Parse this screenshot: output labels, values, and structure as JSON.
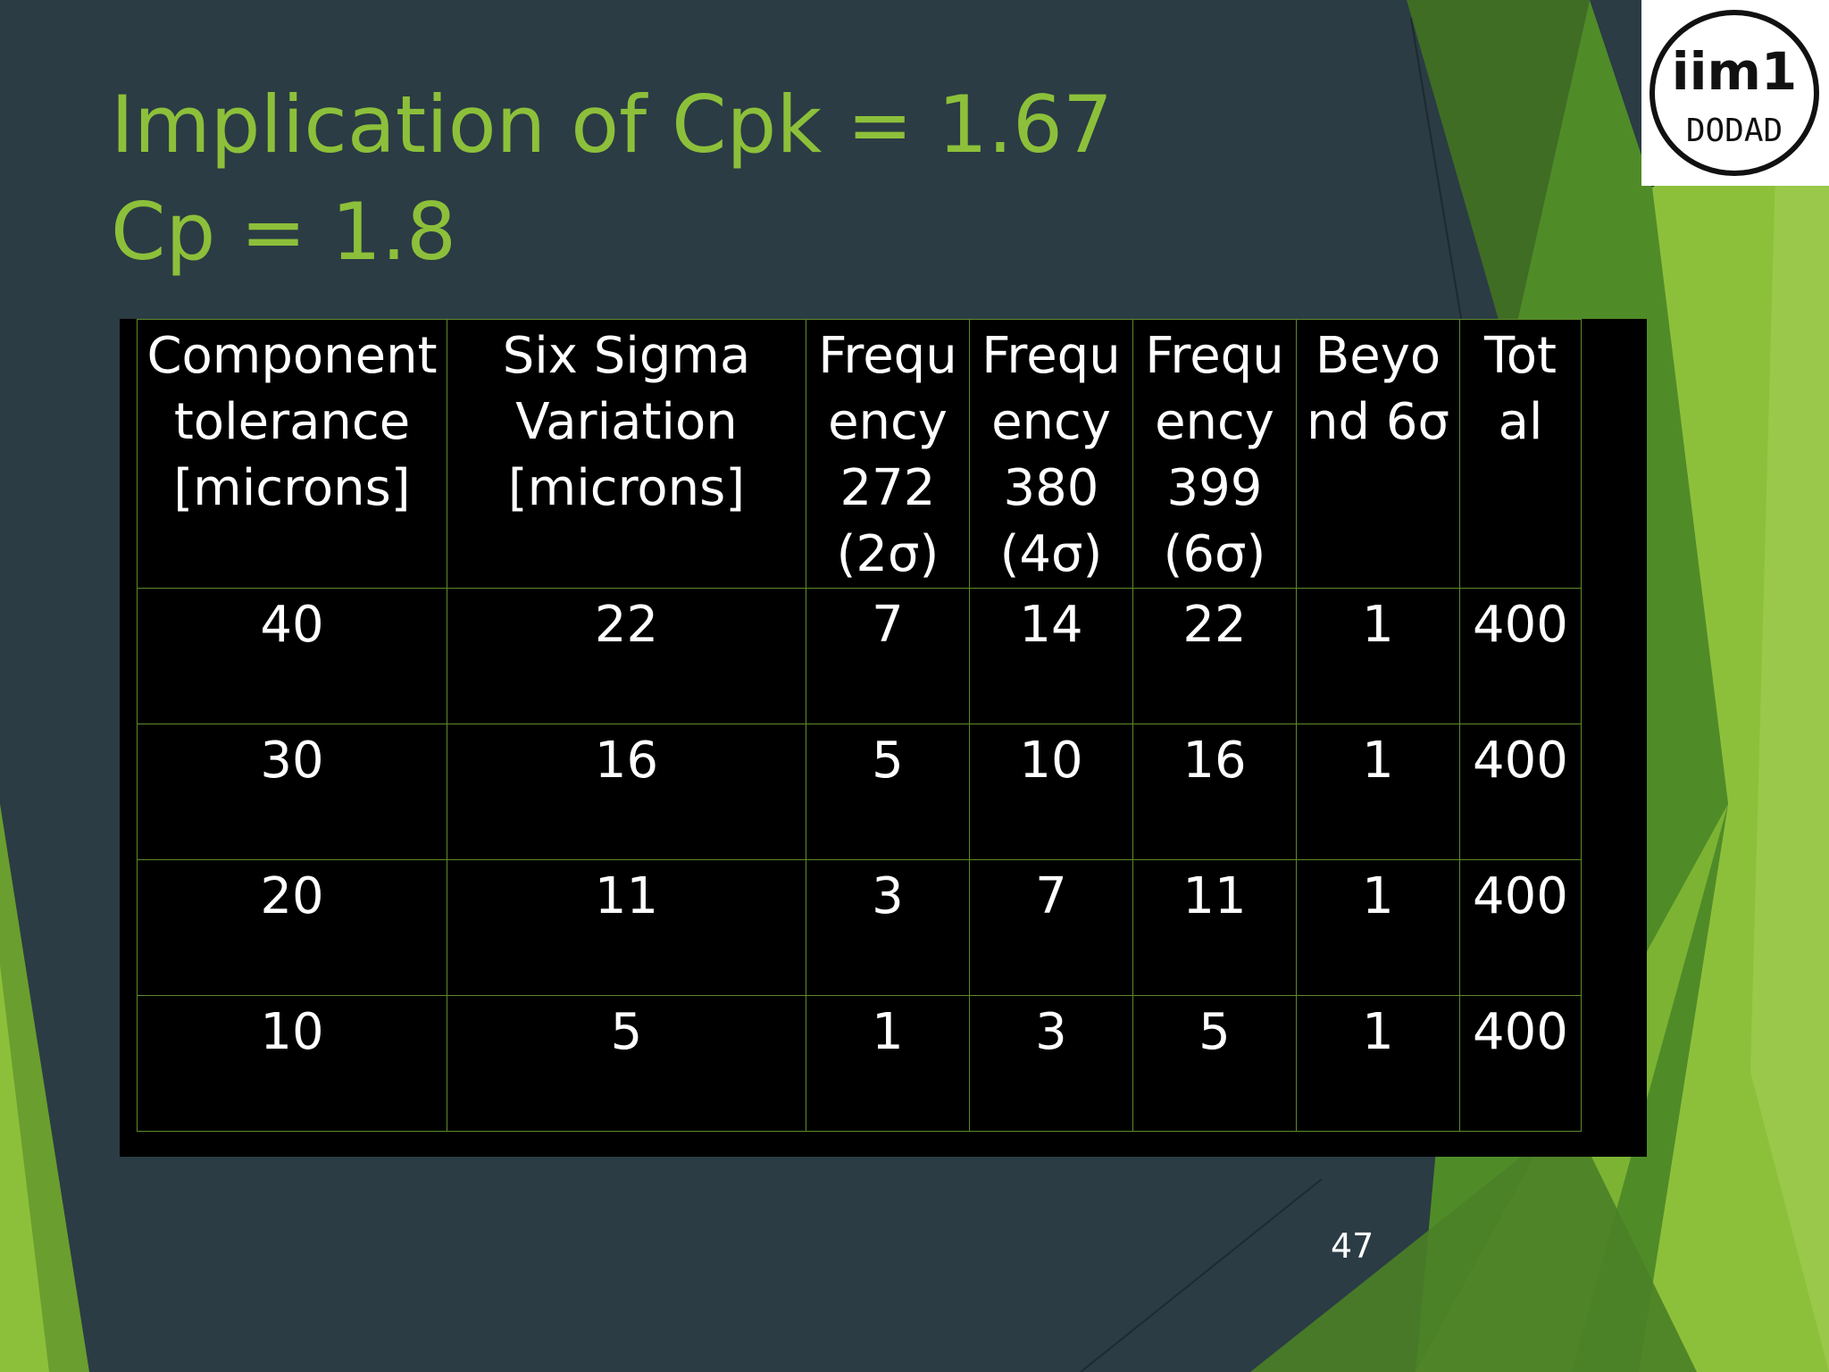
{
  "slide": {
    "title_line1": "Implication of Cpk = 1.67",
    "title_line2": "Cp = 1.8",
    "page_number": "47",
    "colors": {
      "background": "#2b3c44",
      "title": "#8dc03a",
      "accent_green_light": "#8dc03a",
      "accent_green_dark": "#3e6a22",
      "table_background": "#000000",
      "table_border": "#5e8a2a",
      "table_text": "#ffffff"
    },
    "logo": {
      "name": "iim1-logo",
      "text_top": "iim1",
      "text_bottom": "DODAD"
    }
  },
  "table": {
    "headers": [
      "Component tolerance [microns]",
      "Six Sigma Variation [microns]",
      "Frequ ency 272 (2σ)",
      "Frequ ency 380 (4σ)",
      "Frequ ency 399 (6σ)",
      "Beyo nd 6σ",
      "Tot al"
    ],
    "rows": [
      [
        "40",
        "22",
        "7",
        "14",
        "22",
        "1",
        "400"
      ],
      [
        "30",
        "16",
        "5",
        "10",
        "16",
        "1",
        "400"
      ],
      [
        "20",
        "11",
        "3",
        "7",
        "11",
        "1",
        "400"
      ],
      [
        "10",
        "5",
        "1",
        "3",
        "5",
        "1",
        "400"
      ]
    ]
  }
}
